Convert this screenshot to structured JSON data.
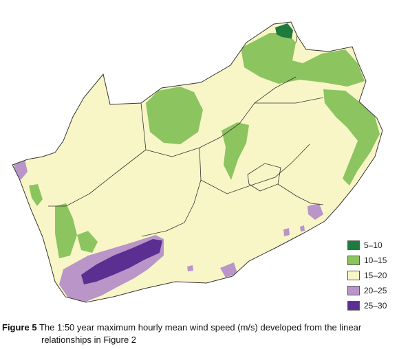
{
  "figure": {
    "caption_label": "Figure 5",
    "caption_text_line1": "The 1:50 year maximum hourly mean wind speed (m/s) developed from the linear",
    "caption_text_line2": "relationships in Figure 2"
  },
  "legend": {
    "items": [
      {
        "label": "5–10",
        "color": "#1f7a3e"
      },
      {
        "label": "10–15",
        "color": "#8cc45f"
      },
      {
        "label": "15–20",
        "color": "#f8f6c6"
      },
      {
        "label": "20–25",
        "color": "#b995c8"
      },
      {
        "label": "25–30",
        "color": "#5a2f91"
      }
    ]
  },
  "colors": {
    "boundary": "#333333",
    "land_base": "#f8f6c6"
  }
}
